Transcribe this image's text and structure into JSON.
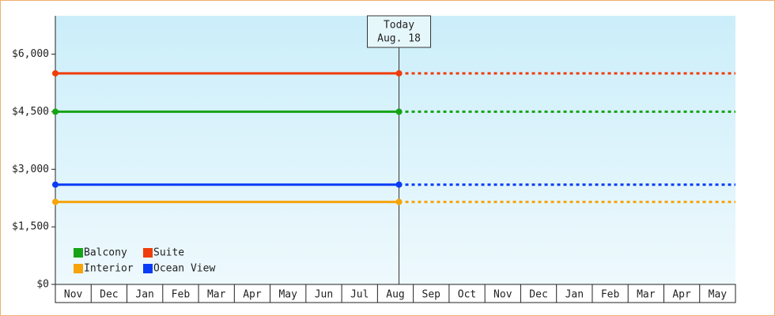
{
  "chart_data": {
    "type": "line",
    "categories": [
      "Nov",
      "Dec",
      "Jan",
      "Feb",
      "Mar",
      "Apr",
      "May",
      "Jun",
      "Jul",
      "Aug",
      "Sep",
      "Oct",
      "Nov",
      "Dec",
      "Jan",
      "Feb",
      "Mar",
      "Apr",
      "May"
    ],
    "series": [
      {
        "name": "Balcony",
        "color": "#16a316",
        "value": 4500
      },
      {
        "name": "Suite",
        "color": "#f03c0a",
        "value": 5500
      },
      {
        "name": "Interior",
        "color": "#f7a40a",
        "value": 2150
      },
      {
        "name": "Ocean View",
        "color": "#0a3cf5",
        "value": 2600
      }
    ],
    "annotation": {
      "title": "Today",
      "date": "Aug. 18"
    },
    "ylim": [
      0,
      7000
    ],
    "yticks": [
      {
        "value": 0,
        "label": "$0"
      },
      {
        "value": 1500,
        "label": "$1,500"
      },
      {
        "value": 3000,
        "label": "$3,000"
      },
      {
        "value": 4500,
        "label": "$4,500"
      },
      {
        "value": 6000,
        "label": "$6,000"
      }
    ],
    "grid": false,
    "legend": "bottom-left"
  }
}
